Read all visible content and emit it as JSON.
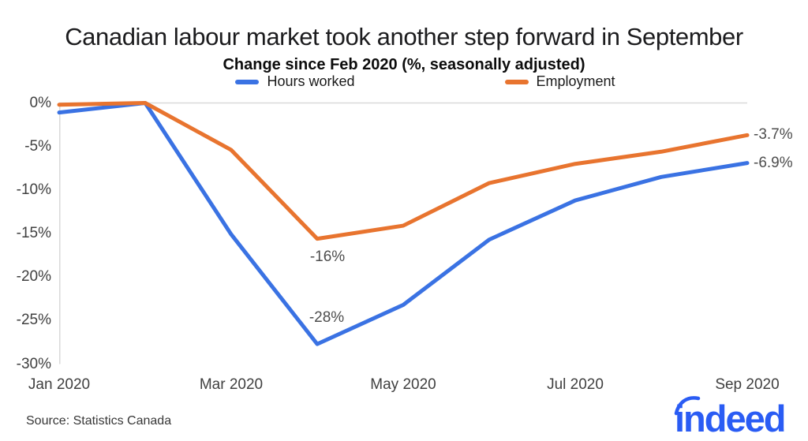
{
  "header": {
    "title": "Canadian labour market took another step forward in September",
    "subtitle": "Change since Feb 2020 (%, seasonally adjusted)"
  },
  "legend": [
    {
      "label": "Hours worked",
      "color": "#3A72E3"
    },
    {
      "label": "Employment",
      "color": "#E8742F"
    }
  ],
  "footer": {
    "source": "Source: Statistics Canada",
    "logo_text": "indeed",
    "logo_color": "#2A5CF4"
  },
  "chart_data": {
    "type": "line",
    "title": "Canadian labour market took another step forward in September",
    "subtitle": "Change since Feb 2020 (%, seasonally adjusted)",
    "categories": [
      "Jan 2020",
      "Feb 2020",
      "Mar 2020",
      "Apr 2020",
      "May 2020",
      "Jun 2020",
      "Jul 2020",
      "Aug 2020",
      "Sep 2020"
    ],
    "series": [
      {
        "name": "Hours worked",
        "color": "#3A72E3",
        "values": [
          -1.1,
          0,
          -15.1,
          -27.7,
          -23.2,
          -15.7,
          -11.2,
          -8.5,
          -6.9
        ]
      },
      {
        "name": "Employment",
        "color": "#E8742F",
        "values": [
          -0.2,
          0,
          -5.4,
          -15.6,
          -14.1,
          -9.2,
          -7.0,
          -5.6,
          -3.7
        ]
      }
    ],
    "ylim": [
      -30,
      0
    ],
    "y_ticks": [
      {
        "label": "0%",
        "value": 0
      },
      {
        "label": "-5%",
        "value": -5
      },
      {
        "label": "-10%",
        "value": -10
      },
      {
        "label": "-15%",
        "value": -15
      },
      {
        "label": "-20%",
        "value": -20
      },
      {
        "label": "-25%",
        "value": -25
      },
      {
        "label": "-30%",
        "value": -30
      }
    ],
    "x_ticks": [
      {
        "label": "Jan 2020",
        "index": 0
      },
      {
        "label": "Mar 2020",
        "index": 2
      },
      {
        "label": "May 2020",
        "index": 4
      },
      {
        "label": "Jul 2020",
        "index": 6
      },
      {
        "label": "Sep 2020",
        "index": 8
      }
    ],
    "annotations": [
      {
        "text": "-16%",
        "series": 1,
        "index": 3,
        "position": "below"
      },
      {
        "text": "-28%",
        "series": 0,
        "index": 3,
        "position": "above"
      },
      {
        "text": "-3.7%",
        "series": 1,
        "index": 8,
        "position": "right"
      },
      {
        "text": "-6.9%",
        "series": 0,
        "index": 8,
        "position": "right"
      }
    ],
    "grid": "zero-line only",
    "legend_position": "top",
    "axis_color": "#D9D9D9"
  }
}
